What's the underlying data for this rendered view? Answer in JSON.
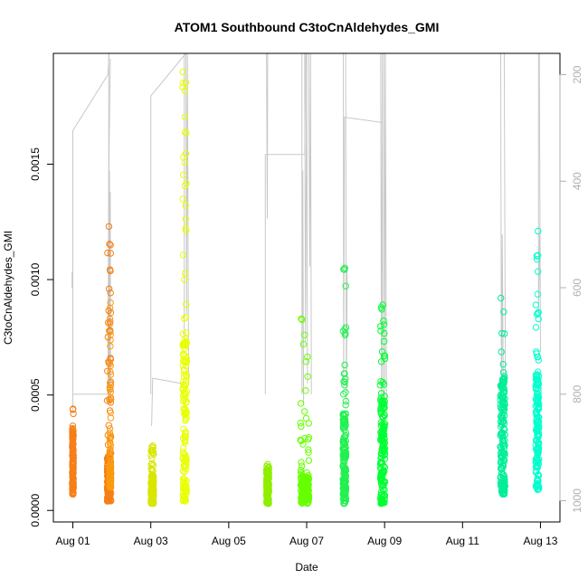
{
  "chart_data": {
    "type": "scatter",
    "title": "ATOM1 Southbound C3toCnAldehydes_GMI",
    "xlabel": "Date",
    "ylabel": "C3toCnAldehydes_GMI",
    "x_unit": "days since Aug 01",
    "xlim": [
      -0.5,
      12.5
    ],
    "ylim": [
      -5e-05,
      0.00198
    ],
    "x_ticks": [
      {
        "value": 0,
        "label": "Aug 01"
      },
      {
        "value": 2,
        "label": "Aug 03"
      },
      {
        "value": 4,
        "label": "Aug 05"
      },
      {
        "value": 6,
        "label": "Aug 07"
      },
      {
        "value": 8,
        "label": "Aug 09"
      },
      {
        "value": 10,
        "label": "Aug 11"
      },
      {
        "value": 12,
        "label": "Aug 13"
      }
    ],
    "y_ticks": [
      {
        "value": 0.0,
        "label": "0.0000"
      },
      {
        "value": 0.0005,
        "label": "0.0005"
      },
      {
        "value": 0.001,
        "label": "0.0010"
      },
      {
        "value": 0.0015,
        "label": "0.0015"
      }
    ],
    "y2_label": "",
    "y2lim": [
      1040,
      160
    ],
    "y2_ticks": [
      {
        "value": 200,
        "label": "200"
      },
      {
        "value": 400,
        "label": "400"
      },
      {
        "value": 600,
        "label": "600"
      },
      {
        "value": 800,
        "label": "800"
      },
      {
        "value": 1000,
        "label": "1000"
      }
    ],
    "grid": false,
    "legend": "none",
    "series": [
      {
        "color": "#f57f1a",
        "clusters": [
          {
            "x": 0.0,
            "w": 0.03,
            "min": 7e-05,
            "max": 0.00044,
            "dense_top": 0.00036
          },
          {
            "x": 0.93,
            "w": 0.1,
            "min": 4e-05,
            "max": 0.00123,
            "dense_top": 0.00025
          }
        ]
      },
      {
        "color": "#fb9a10",
        "clusters": [
          {
            "x": 0.96,
            "w": 0.03,
            "min": 0.0001,
            "max": 0.0009,
            "dense_top": 0.0002
          }
        ]
      },
      {
        "color": "#d8e600",
        "clusters": [
          {
            "x": 2.04,
            "w": 0.07,
            "min": 3e-05,
            "max": 0.00028,
            "dense_top": 0.00015
          }
        ]
      },
      {
        "color": "#e8ff00",
        "clusters": [
          {
            "x": 2.87,
            "w": 0.1,
            "min": 4e-05,
            "max": 0.0019,
            "dense_top": 0.00075
          }
        ]
      },
      {
        "color": "#8fee00",
        "clusters": [
          {
            "x": 5.0,
            "w": 0.06,
            "min": 3e-05,
            "max": 0.0002,
            "dense_top": 0.00018
          }
        ]
      },
      {
        "color": "#66ff00",
        "clusters": [
          {
            "x": 5.95,
            "w": 0.22,
            "min": 3e-05,
            "max": 0.00083,
            "dense_top": 0.00015
          }
        ]
      },
      {
        "color": "#22f050",
        "clusters": [
          {
            "x": 6.97,
            "w": 0.08,
            "min": 3e-05,
            "max": 0.00105,
            "dense_top": 0.00042
          }
        ]
      },
      {
        "color": "#00ff33",
        "clusters": [
          {
            "x": 7.95,
            "w": 0.12,
            "min": 3e-05,
            "max": 0.00089,
            "dense_top": 0.0005
          }
        ]
      },
      {
        "color": "#00ee99",
        "clusters": [
          {
            "x": 11.03,
            "w": 0.12,
            "min": 7e-05,
            "max": 0.00092,
            "dense_top": 0.00058
          }
        ]
      },
      {
        "color": "#00ffcc",
        "clusters": [
          {
            "x": 11.92,
            "w": 0.08,
            "min": 9e-05,
            "max": 0.00121,
            "dense_top": 0.0006
          }
        ]
      }
    ],
    "secondary_line": {
      "color": "#c8c8c8",
      "segments": [
        [
          [
            -0.02,
            600
          ],
          [
            -0.02,
            570
          ]
        ],
        [
          [
            0.0,
            830
          ],
          [
            0.0,
            305
          ],
          [
            0.9,
            200
          ],
          [
            0.93,
            160
          ]
        ],
        [
          [
            0.0,
            800
          ],
          [
            0.9,
            800
          ],
          [
            0.92,
            400
          ],
          [
            0.96,
            170
          ]
        ],
        [
          [
            0.92,
            160
          ],
          [
            0.92,
            820
          ]
        ],
        [
          [
            0.94,
            380
          ],
          [
            0.94,
            800
          ],
          [
            0.96,
            420
          ],
          [
            0.97,
            820
          ]
        ],
        [
          [
            1.0,
            160
          ],
          [
            1.75,
            160
          ]
        ],
        [
          [
            2.0,
            800
          ],
          [
            2.0,
            240
          ],
          [
            2.9,
            160
          ]
        ],
        [
          [
            2.02,
            860
          ],
          [
            2.05,
            770
          ],
          [
            2.8,
            780
          ]
        ],
        [
          [
            2.86,
            160
          ],
          [
            2.86,
            700
          ]
        ],
        [
          [
            2.9,
            160
          ],
          [
            2.92,
            650
          ],
          [
            2.94,
            160
          ],
          [
            2.97,
            780
          ]
        ],
        [
          [
            3.0,
            160
          ],
          [
            3.5,
            160
          ]
        ],
        [
          [
            4.94,
            800
          ],
          [
            4.94,
            350
          ],
          [
            5.95,
            350
          ],
          [
            5.98,
            160
          ]
        ],
        [
          [
            4.97,
            160
          ],
          [
            4.99,
            470
          ],
          [
            5.0,
            160
          ]
        ],
        [
          [
            5.88,
            160
          ],
          [
            5.88,
            800
          ],
          [
            5.9,
            380
          ],
          [
            5.92,
            820
          ]
        ],
        [
          [
            5.95,
            160
          ],
          [
            5.97,
            700
          ],
          [
            6.0,
            160
          ],
          [
            6.02,
            780
          ]
        ],
        [
          [
            6.05,
            160
          ],
          [
            6.08,
            560
          ],
          [
            6.1,
            160
          ],
          [
            6.12,
            800
          ]
        ],
        [
          [
            6.94,
            160
          ],
          [
            6.95,
            790
          ],
          [
            6.97,
            280
          ],
          [
            7.95,
            290
          ]
        ],
        [
          [
            7.0,
            160
          ],
          [
            7.02,
            820
          ],
          [
            7.04,
            560
          ]
        ],
        [
          [
            7.9,
            160
          ],
          [
            7.92,
            800
          ],
          [
            7.94,
            160
          ],
          [
            7.96,
            860
          ]
        ],
        [
          [
            7.98,
            160
          ],
          [
            8.0,
            820
          ],
          [
            8.02,
            160
          ],
          [
            8.05,
            840
          ]
        ],
        [
          [
            10.98,
            160
          ],
          [
            11.0,
            900
          ],
          [
            11.02,
            500
          ],
          [
            11.05,
            820
          ]
        ],
        [
          [
            11.07,
            160
          ],
          [
            11.1,
            780
          ]
        ],
        [
          [
            11.95,
            160
          ],
          [
            11.95,
            650
          ],
          [
            11.98,
            500
          ]
        ],
        [
          [
            11.97,
            160
          ],
          [
            12.0,
            720
          ]
        ]
      ]
    }
  }
}
